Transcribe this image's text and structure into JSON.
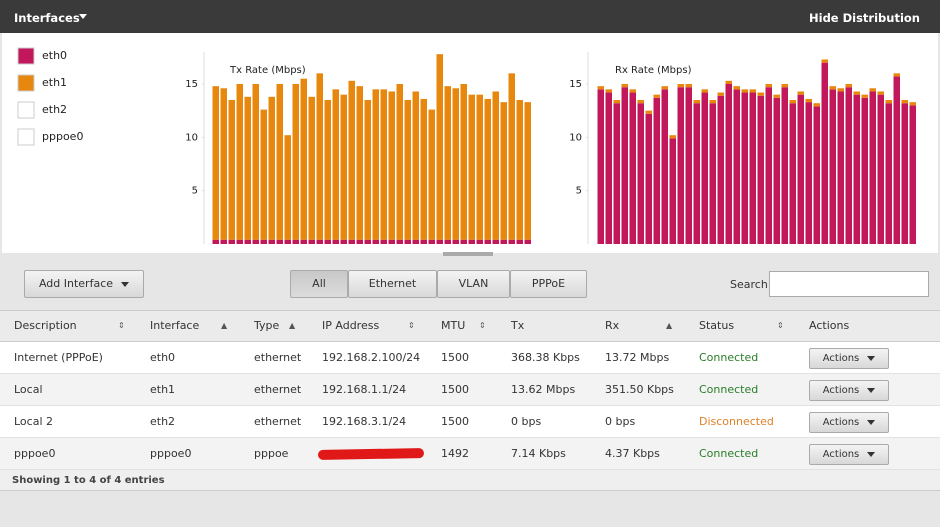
{
  "header": {
    "title": "Interfaces",
    "action": "Hide Distribution"
  },
  "legend": [
    {
      "name": "eth0",
      "color": "#c2185b"
    },
    {
      "name": "eth1",
      "color": "#e8870e"
    },
    {
      "name": "eth2",
      "color": "#ffffff"
    },
    {
      "name": "pppoe0",
      "color": "#ffffff"
    }
  ],
  "chart_data": [
    {
      "type": "bar",
      "title": "Tx Rate (Mbps)",
      "ylim": [
        0,
        18
      ],
      "yticks": [
        5,
        10,
        15
      ],
      "stacked": true,
      "series": [
        {
          "name": "eth0",
          "color": "#c2185b",
          "values": [
            0.4,
            0.4,
            0.4,
            0.4,
            0.4,
            0.4,
            0.4,
            0.4,
            0.4,
            0.4,
            0.4,
            0.4,
            0.4,
            0.4,
            0.4,
            0.4,
            0.4,
            0.4,
            0.4,
            0.4,
            0.4,
            0.4,
            0.4,
            0.4,
            0.4,
            0.4,
            0.4,
            0.4,
            0.4,
            0.4,
            0.4,
            0.4,
            0.4,
            0.4,
            0.4,
            0.4,
            0.4,
            0.4,
            0.4,
            0.4
          ]
        },
        {
          "name": "eth1",
          "color": "#e8870e",
          "values": [
            14.4,
            14.2,
            13.1,
            14.6,
            13.4,
            14.6,
            12.2,
            13.4,
            14.6,
            9.8,
            14.6,
            15.1,
            13.4,
            15.6,
            13.1,
            14.1,
            13.6,
            14.9,
            14.4,
            13.1,
            14.1,
            14.1,
            13.9,
            14.6,
            13.1,
            13.9,
            13.2,
            12.2,
            17.4,
            14.4,
            14.2,
            14.6,
            13.6,
            13.6,
            13.2,
            13.9,
            12.9,
            15.6,
            13.1,
            12.9
          ]
        }
      ]
    },
    {
      "type": "bar",
      "title": "Rx Rate (Mbps)",
      "ylim": [
        0,
        18
      ],
      "yticks": [
        5,
        10,
        15
      ],
      "stacked": true,
      "series": [
        {
          "name": "eth0",
          "color": "#c2185b",
          "values": [
            14.5,
            14.2,
            13.2,
            14.7,
            14.2,
            13.2,
            12.2,
            13.7,
            14.5,
            9.9,
            14.7,
            14.7,
            13.2,
            14.2,
            13.2,
            13.9,
            15.0,
            14.5,
            14.2,
            14.2,
            13.9,
            14.7,
            13.7,
            14.7,
            13.2,
            14.0,
            13.3,
            12.9,
            17.0,
            14.5,
            14.3,
            14.7,
            14.0,
            13.7,
            14.3,
            14.0,
            13.2,
            15.7,
            13.2,
            13.0
          ]
        },
        {
          "name": "eth1",
          "color": "#e8870e",
          "values": [
            0.3,
            0.3,
            0.3,
            0.3,
            0.3,
            0.3,
            0.3,
            0.3,
            0.3,
            0.3,
            0.3,
            0.3,
            0.3,
            0.3,
            0.3,
            0.3,
            0.3,
            0.3,
            0.3,
            0.3,
            0.3,
            0.3,
            0.3,
            0.3,
            0.3,
            0.3,
            0.3,
            0.3,
            0.3,
            0.3,
            0.3,
            0.3,
            0.3,
            0.3,
            0.3,
            0.3,
            0.3,
            0.3,
            0.3,
            0.3
          ]
        }
      ]
    }
  ],
  "toolbar": {
    "add": "Add Interface",
    "tabs": [
      "All",
      "Ethernet",
      "VLAN",
      "PPPoE"
    ],
    "search": "Search"
  },
  "table": {
    "columns": [
      "Description",
      "Interface",
      "Type",
      "IP Address",
      "MTU",
      "Tx",
      "Rx",
      "Status",
      "Actions"
    ],
    "rows": [
      [
        "Internet (PPPoE)",
        "eth0",
        "ethernet",
        "192.168.2.100/24",
        1500,
        "368.38 Kbps",
        "13.72 Mbps",
        "Connected",
        "Actions"
      ],
      [
        "Local",
        "eth1",
        "ethernet",
        "192.168.1.1/24",
        1500,
        "13.62 Mbps",
        "351.50 Kbps",
        "Connected",
        "Actions"
      ],
      [
        "Local 2",
        "eth2",
        "ethernet",
        "192.168.3.1/24",
        1500,
        "0 bps",
        "0 bps",
        "Disconnected",
        "Actions"
      ],
      [
        "pppoe0",
        "pppoe0",
        "pppoe",
        null,
        1492,
        "7.14 Kbps",
        "4.37 Kbps",
        "Connected",
        "Actions"
      ]
    ]
  },
  "footer": "Showing 1 to 4 of 4 entries"
}
